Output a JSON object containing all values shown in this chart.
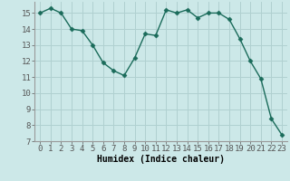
{
  "x": [
    0,
    1,
    2,
    3,
    4,
    5,
    6,
    7,
    8,
    9,
    10,
    11,
    12,
    13,
    14,
    15,
    16,
    17,
    18,
    19,
    20,
    21,
    22,
    23
  ],
  "y": [
    15.0,
    15.3,
    15.0,
    14.0,
    13.9,
    13.0,
    11.9,
    11.4,
    11.1,
    12.2,
    13.7,
    13.6,
    15.2,
    15.0,
    15.2,
    14.7,
    15.0,
    15.0,
    14.6,
    13.4,
    12.0,
    10.9,
    8.4,
    7.4
  ],
  "line_color": "#1a6b5a",
  "marker": "D",
  "marker_size": 2.5,
  "bg_color": "#cce8e8",
  "grid_color": "#b0d0d0",
  "xlabel": "Humidex (Indice chaleur)",
  "xlim": [
    -0.5,
    23.5
  ],
  "ylim": [
    7,
    15.7
  ],
  "yticks": [
    7,
    8,
    9,
    10,
    11,
    12,
    13,
    14,
    15
  ],
  "xticks": [
    0,
    1,
    2,
    3,
    4,
    5,
    6,
    7,
    8,
    9,
    10,
    11,
    12,
    13,
    14,
    15,
    16,
    17,
    18,
    19,
    20,
    21,
    22,
    23
  ],
  "xlabel_fontsize": 7,
  "tick_fontsize": 6.5
}
